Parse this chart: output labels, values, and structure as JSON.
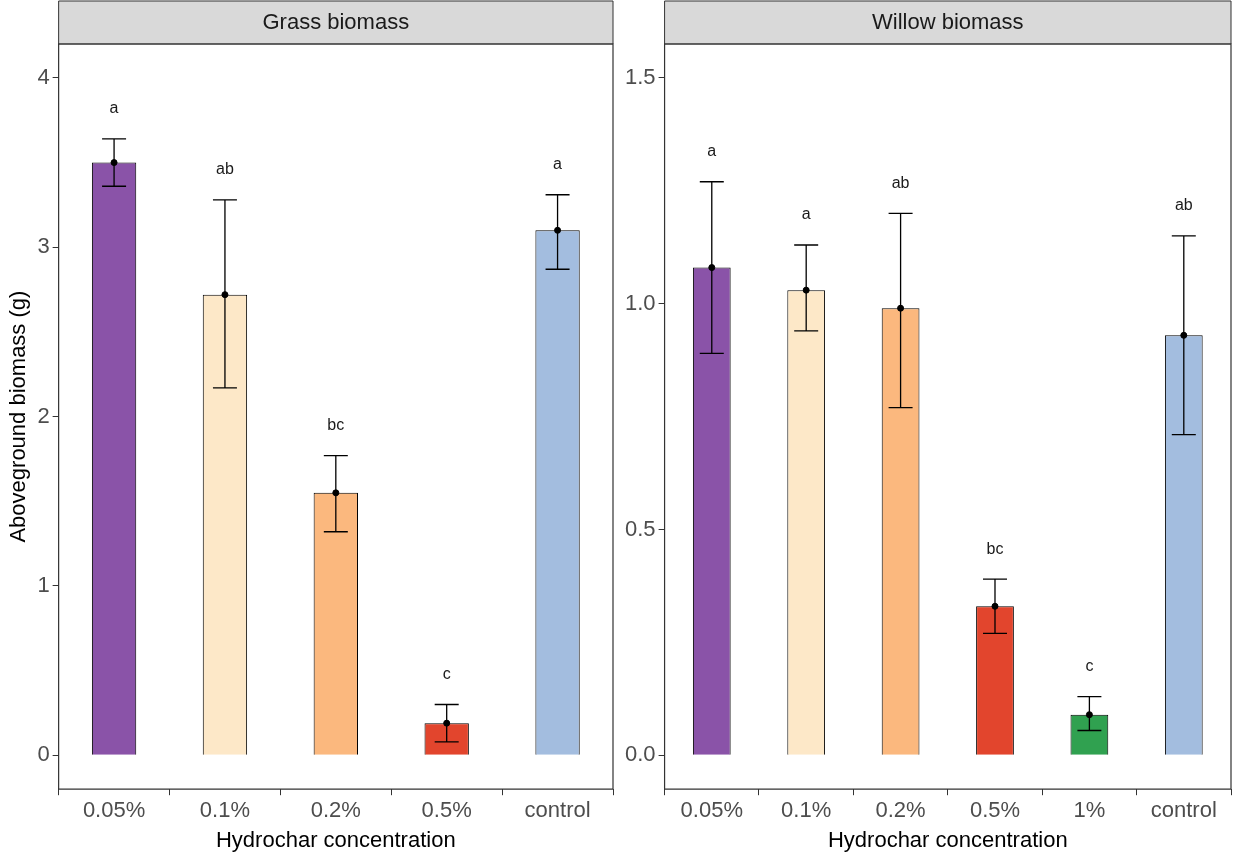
{
  "chart_data": [
    {
      "type": "bar",
      "title": "Grass biomass",
      "xlabel": "Hydrochar concentration",
      "ylabel": "Aboveground biomass (g)",
      "categories": [
        "0.05%",
        "0.1%",
        "0.2%",
        "0.5%",
        "control"
      ],
      "series": [
        {
          "type": "bar",
          "colors": [
            "#8a53a8",
            "#fde8c8",
            "#fbb87e",
            "#e2452d",
            "#a3bddf"
          ],
          "values": [
            3.5,
            2.72,
            1.55,
            0.19,
            3.1
          ],
          "errors": [
            [
              3.36,
              3.64
            ],
            [
              2.17,
              3.28
            ],
            [
              1.32,
              1.77
            ],
            [
              0.08,
              0.3
            ],
            [
              2.87,
              3.31
            ]
          ]
        },
        {
          "type": "scatter",
          "color": "#000000",
          "x": [
            "0.05%",
            "0.1%",
            "0.2%",
            "0.5%",
            "control"
          ],
          "values": [
            3.5,
            2.72,
            1.55,
            0.19,
            3.1
          ]
        }
      ],
      "ylim": [
        -0.2,
        4.2
      ],
      "yticks": [
        0,
        1,
        2,
        3,
        4
      ],
      "grid": false,
      "legend": false,
      "annotations": [
        "a",
        "ab",
        "bc",
        "c",
        "a"
      ]
    },
    {
      "type": "bar",
      "title": "Willow biomass",
      "xlabel": "Hydrochar concentration",
      "categories": [
        "0.05%",
        "0.1%",
        "0.2%",
        "0.5%",
        "1%",
        "control"
      ],
      "series": [
        {
          "type": "bar",
          "colors": [
            "#8a53a8",
            "#fde8c8",
            "#fbb87e",
            "#e2452d",
            "#30a150",
            "#a3bddf"
          ],
          "values": [
            1.08,
            1.03,
            0.99,
            0.33,
            0.09,
            0.93
          ],
          "errors": [
            [
              0.89,
              1.27
            ],
            [
              0.94,
              1.13
            ],
            [
              0.77,
              1.2
            ],
            [
              0.27,
              0.39
            ],
            [
              0.055,
              0.13
            ],
            [
              0.71,
              1.15
            ]
          ]
        },
        {
          "type": "scatter",
          "color": "#000000",
          "x": [
            "0.05%",
            "0.1%",
            "0.2%",
            "0.5%",
            "1%",
            "control"
          ],
          "values": [
            1.08,
            1.03,
            0.99,
            0.33,
            0.09,
            0.93
          ]
        }
      ],
      "ylim": [
        -0.075,
        1.575
      ],
      "yticks": [
        {
          "value": 0,
          "label": "0.0"
        },
        0.5,
        {
          "value": 1,
          "label": "1.0"
        },
        1.5
      ],
      "grid": false,
      "legend": false,
      "annotations": [
        "a",
        "a",
        "ab",
        "bc",
        "c",
        "ab"
      ]
    }
  ]
}
